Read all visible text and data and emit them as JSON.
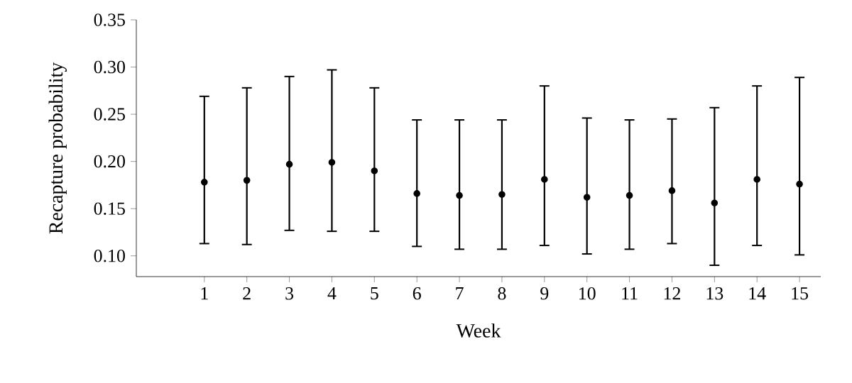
{
  "chart_data": {
    "type": "scatter",
    "xlabel": "Week",
    "ylabel": "Recapture probability",
    "categories": [
      "1",
      "2",
      "3",
      "4",
      "5",
      "6",
      "7",
      "8",
      "9",
      "10",
      "11",
      "12",
      "13",
      "14",
      "15"
    ],
    "values": [
      0.178,
      0.18,
      0.197,
      0.199,
      0.19,
      0.166,
      0.164,
      0.165,
      0.181,
      0.162,
      0.164,
      0.169,
      0.156,
      0.181,
      0.176
    ],
    "errors": [
      [
        0.113,
        0.269
      ],
      [
        0.112,
        0.278
      ],
      [
        0.127,
        0.29
      ],
      [
        0.126,
        0.297
      ],
      [
        0.126,
        0.278
      ],
      [
        0.11,
        0.244
      ],
      [
        0.107,
        0.244
      ],
      [
        0.107,
        0.244
      ],
      [
        0.111,
        0.28
      ],
      [
        0.102,
        0.246
      ],
      [
        0.107,
        0.244
      ],
      [
        0.113,
        0.245
      ],
      [
        0.09,
        0.257
      ],
      [
        0.111,
        0.28
      ],
      [
        0.101,
        0.289
      ]
    ],
    "color": "#000000",
    "ylim": [
      0.078,
      0.35
    ],
    "yticks": [
      {
        "value": 0.1,
        "label": "0.10"
      },
      {
        "value": 0.15,
        "label": "0.15"
      },
      {
        "value": 0.2,
        "label": "0.20"
      },
      {
        "value": 0.25,
        "label": "0.25"
      },
      {
        "value": 0.3,
        "label": "0.30"
      },
      {
        "value": 0.35,
        "label": "0.35"
      }
    ],
    "grid": false,
    "marker": "circle"
  }
}
